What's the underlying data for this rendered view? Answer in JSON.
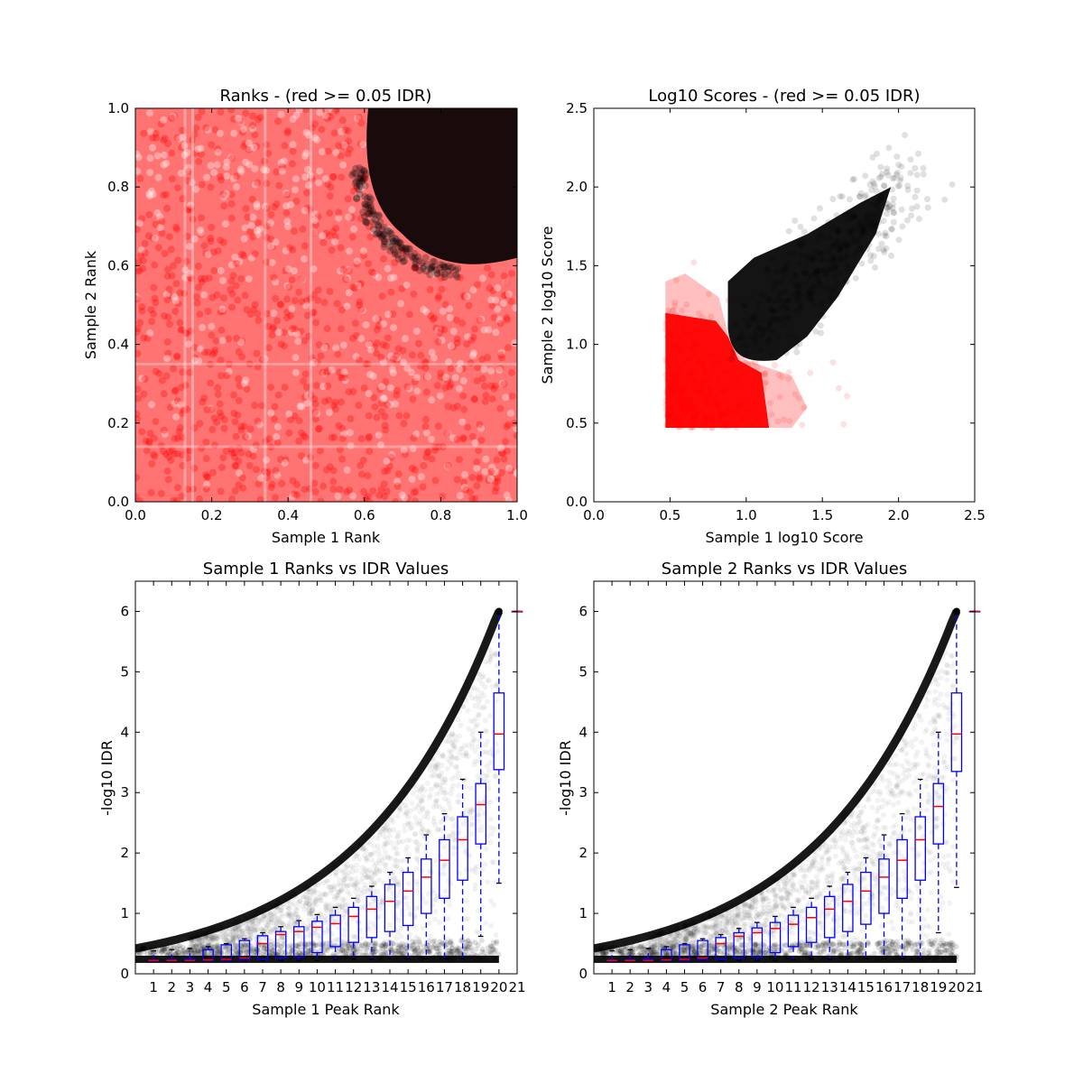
{
  "charts": [
    {
      "title": "Ranks - (red >= 0.05 IDR)",
      "xlabel": "Sample 1 Rank",
      "ylabel": "Sample 2 Rank",
      "xticks": [
        "0.0",
        "0.2",
        "0.4",
        "0.6",
        "0.8",
        "1.0"
      ],
      "yticks": [
        "0.0",
        "0.2",
        "0.4",
        "0.6",
        "0.8",
        "1.0"
      ]
    },
    {
      "title": "Log10 Scores - (red >= 0.05 IDR)",
      "xlabel": "Sample 1 log10 Score",
      "ylabel": "Sample 2 log10 Score",
      "xticks": [
        "0.0",
        "0.5",
        "1.0",
        "1.5",
        "2.0",
        "2.5"
      ],
      "yticks": [
        "0.0",
        "0.5",
        "1.0",
        "1.5",
        "2.0",
        "2.5"
      ]
    },
    {
      "title": "Sample 1 Ranks vs IDR Values",
      "xlabel": "Sample 1 Peak Rank",
      "ylabel": "-log10 IDR",
      "xticks": [
        "1",
        "2",
        "3",
        "4",
        "5",
        "6",
        "7",
        "8",
        "9",
        "10",
        "11",
        "12",
        "13",
        "14",
        "15",
        "16",
        "17",
        "18",
        "19",
        "20",
        "21"
      ],
      "yticks": [
        "0",
        "1",
        "2",
        "3",
        "4",
        "5",
        "6"
      ]
    },
    {
      "title": "Sample 2 Ranks vs IDR Values",
      "xlabel": "Sample 2 Peak Rank",
      "ylabel": "-log10 IDR",
      "xticks": [
        "1",
        "2",
        "3",
        "4",
        "5",
        "6",
        "7",
        "8",
        "9",
        "10",
        "11",
        "12",
        "13",
        "14",
        "15",
        "16",
        "17",
        "18",
        "19",
        "20",
        "21"
      ],
      "yticks": [
        "0",
        "1",
        "2",
        "3",
        "4",
        "5",
        "6"
      ]
    }
  ],
  "colors": {
    "pass": "#000000",
    "fail": "#ff0000",
    "box": "#0000ff",
    "median": "#ff0000"
  },
  "chart_data": [
    {
      "type": "scatter",
      "title": "Ranks - (red >= 0.05 IDR)",
      "xlabel": "Sample 1 Rank",
      "ylabel": "Sample 2 Rank",
      "xlim": [
        0.0,
        1.0
      ],
      "ylim": [
        0.0,
        1.0
      ],
      "series": [
        {
          "color": "#ff0000",
          "region": "IDR >= 0.05, rest of unit square"
        },
        {
          "color": "#000000",
          "region": "IDR < 0.05, upper-right corner, boundary near x>=0.6, y>=0.6"
        }
      ]
    },
    {
      "type": "scatter",
      "title": "Log10 Scores - (red >= 0.05 IDR)",
      "xlabel": "Sample 1 log10 Score",
      "ylabel": "Sample 2 log10 Score",
      "xlim": [
        0.0,
        2.5
      ],
      "ylim": [
        0.0,
        2.5
      ],
      "series": [
        {
          "color": "#ff0000",
          "min_x": 0.47,
          "min_y": 0.47
        },
        {
          "color": "#000000",
          "boundary_x": 0.9,
          "boundary_y": 0.9,
          "max_x": 2.15,
          "max_y": 2.15
        }
      ]
    },
    {
      "type": "box",
      "title": "Sample 1 Ranks vs IDR Values",
      "xlabel": "Sample 1 Peak Rank",
      "ylabel": "-log10 IDR",
      "ylim": [
        0,
        6.5
      ],
      "categories": [
        1,
        2,
        3,
        4,
        5,
        6,
        7,
        8,
        9,
        10,
        11,
        12,
        13,
        14,
        15,
        16,
        17,
        18,
        19,
        20,
        21
      ],
      "boxes": [
        {
          "pos": 1,
          "wlo": 0.22,
          "q1": 0.22,
          "med": 0.22,
          "q3": 0.22,
          "whi": 0.38
        },
        {
          "pos": 2,
          "wlo": 0.22,
          "q1": 0.22,
          "med": 0.22,
          "q3": 0.23,
          "whi": 0.4
        },
        {
          "pos": 3,
          "wlo": 0.22,
          "q1": 0.22,
          "med": 0.22,
          "q3": 0.25,
          "whi": 0.42
        },
        {
          "pos": 4,
          "wlo": 0.22,
          "q1": 0.22,
          "med": 0.23,
          "q3": 0.4,
          "whi": 0.45
        },
        {
          "pos": 5,
          "wlo": 0.22,
          "q1": 0.22,
          "med": 0.24,
          "q3": 0.48,
          "whi": 0.5
        },
        {
          "pos": 6,
          "wlo": 0.22,
          "q1": 0.23,
          "med": 0.26,
          "q3": 0.55,
          "whi": 0.58
        },
        {
          "pos": 7,
          "wlo": 0.22,
          "q1": 0.24,
          "med": 0.5,
          "q3": 0.63,
          "whi": 0.68
        },
        {
          "pos": 8,
          "wlo": 0.22,
          "q1": 0.26,
          "med": 0.65,
          "q3": 0.7,
          "whi": 0.78
        },
        {
          "pos": 9,
          "wlo": 0.22,
          "q1": 0.28,
          "med": 0.7,
          "q3": 0.78,
          "whi": 0.88
        },
        {
          "pos": 10,
          "wlo": 0.22,
          "q1": 0.35,
          "med": 0.77,
          "q3": 0.87,
          "whi": 0.98
        },
        {
          "pos": 11,
          "wlo": 0.23,
          "q1": 0.45,
          "med": 0.83,
          "q3": 0.97,
          "whi": 1.1
        },
        {
          "pos": 12,
          "wlo": 0.24,
          "q1": 0.52,
          "med": 0.95,
          "q3": 1.1,
          "whi": 1.25
        },
        {
          "pos": 13,
          "wlo": 0.24,
          "q1": 0.6,
          "med": 1.07,
          "q3": 1.28,
          "whi": 1.45
        },
        {
          "pos": 14,
          "wlo": 0.25,
          "q1": 0.7,
          "med": 1.2,
          "q3": 1.48,
          "whi": 1.68
        },
        {
          "pos": 15,
          "wlo": 0.25,
          "q1": 0.8,
          "med": 1.37,
          "q3": 1.68,
          "whi": 1.92
        },
        {
          "pos": 16,
          "wlo": 0.25,
          "q1": 1.0,
          "med": 1.6,
          "q3": 1.9,
          "whi": 2.3
        },
        {
          "pos": 17,
          "wlo": 0.25,
          "q1": 1.25,
          "med": 1.88,
          "q3": 2.22,
          "whi": 2.65
        },
        {
          "pos": 18,
          "wlo": 0.25,
          "q1": 1.55,
          "med": 2.22,
          "q3": 2.6,
          "whi": 3.22
        },
        {
          "pos": 19,
          "wlo": 0.62,
          "q1": 2.15,
          "med": 2.8,
          "q3": 3.15,
          "whi": 4.0
        },
        {
          "pos": 20,
          "wlo": 1.5,
          "q1": 3.38,
          "med": 3.97,
          "q3": 4.65,
          "whi": 6.0
        },
        {
          "pos": 21,
          "wlo": 6.0,
          "q1": 6.0,
          "med": 6.0,
          "q3": 6.0,
          "whi": 6.0
        }
      ]
    },
    {
      "type": "box",
      "title": "Sample 2 Ranks vs IDR Values",
      "xlabel": "Sample 2 Peak Rank",
      "ylabel": "-log10 IDR",
      "ylim": [
        0,
        6.5
      ],
      "categories": [
        1,
        2,
        3,
        4,
        5,
        6,
        7,
        8,
        9,
        10,
        11,
        12,
        13,
        14,
        15,
        16,
        17,
        18,
        19,
        20,
        21
      ],
      "boxes": [
        {
          "pos": 1,
          "wlo": 0.22,
          "q1": 0.22,
          "med": 0.22,
          "q3": 0.22,
          "whi": 0.38
        },
        {
          "pos": 2,
          "wlo": 0.22,
          "q1": 0.22,
          "med": 0.22,
          "q3": 0.23,
          "whi": 0.4
        },
        {
          "pos": 3,
          "wlo": 0.22,
          "q1": 0.22,
          "med": 0.22,
          "q3": 0.25,
          "whi": 0.42
        },
        {
          "pos": 4,
          "wlo": 0.22,
          "q1": 0.22,
          "med": 0.23,
          "q3": 0.4,
          "whi": 0.45
        },
        {
          "pos": 5,
          "wlo": 0.22,
          "q1": 0.22,
          "med": 0.24,
          "q3": 0.48,
          "whi": 0.5
        },
        {
          "pos": 6,
          "wlo": 0.22,
          "q1": 0.23,
          "med": 0.26,
          "q3": 0.55,
          "whi": 0.58
        },
        {
          "pos": 7,
          "wlo": 0.22,
          "q1": 0.24,
          "med": 0.5,
          "q3": 0.6,
          "whi": 0.65
        },
        {
          "pos": 8,
          "wlo": 0.22,
          "q1": 0.26,
          "med": 0.62,
          "q3": 0.68,
          "whi": 0.75
        },
        {
          "pos": 9,
          "wlo": 0.22,
          "q1": 0.28,
          "med": 0.68,
          "q3": 0.76,
          "whi": 0.85
        },
        {
          "pos": 10,
          "wlo": 0.22,
          "q1": 0.35,
          "med": 0.75,
          "q3": 0.85,
          "whi": 0.95
        },
        {
          "pos": 11,
          "wlo": 0.23,
          "q1": 0.45,
          "med": 0.82,
          "q3": 0.97,
          "whi": 1.1
        },
        {
          "pos": 12,
          "wlo": 0.24,
          "q1": 0.52,
          "med": 0.93,
          "q3": 1.1,
          "whi": 1.25
        },
        {
          "pos": 13,
          "wlo": 0.24,
          "q1": 0.6,
          "med": 1.07,
          "q3": 1.28,
          "whi": 1.45
        },
        {
          "pos": 14,
          "wlo": 0.25,
          "q1": 0.7,
          "med": 1.2,
          "q3": 1.48,
          "whi": 1.68
        },
        {
          "pos": 15,
          "wlo": 0.25,
          "q1": 0.82,
          "med": 1.37,
          "q3": 1.68,
          "whi": 1.92
        },
        {
          "pos": 16,
          "wlo": 0.25,
          "q1": 1.0,
          "med": 1.6,
          "q3": 1.9,
          "whi": 2.3
        },
        {
          "pos": 17,
          "wlo": 0.25,
          "q1": 1.25,
          "med": 1.88,
          "q3": 2.22,
          "whi": 2.65
        },
        {
          "pos": 18,
          "wlo": 0.25,
          "q1": 1.55,
          "med": 2.22,
          "q3": 2.6,
          "whi": 3.22
        },
        {
          "pos": 19,
          "wlo": 0.68,
          "q1": 2.15,
          "med": 2.77,
          "q3": 3.15,
          "whi": 4.0
        },
        {
          "pos": 20,
          "wlo": 1.43,
          "q1": 3.35,
          "med": 3.97,
          "q3": 4.65,
          "whi": 6.0
        },
        {
          "pos": 21,
          "wlo": 6.0,
          "q1": 6.0,
          "med": 6.0,
          "q3": 6.0,
          "whi": 6.0
        }
      ]
    }
  ]
}
